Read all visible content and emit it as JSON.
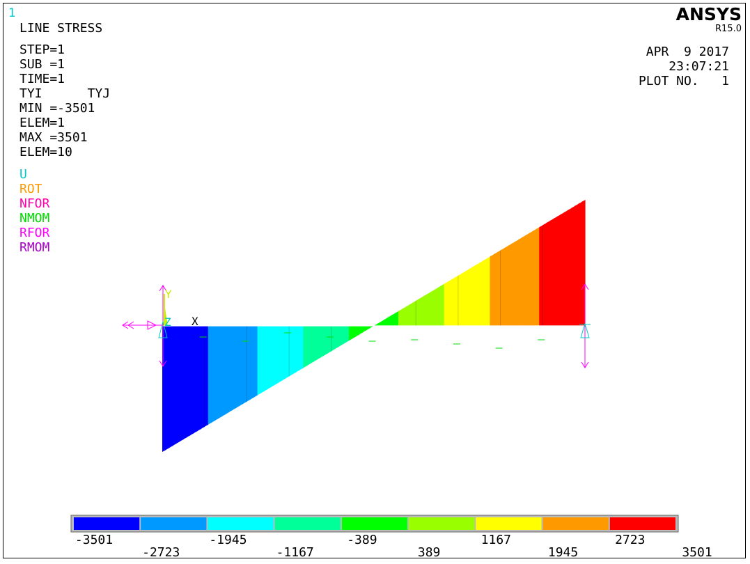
{
  "window_number": "1",
  "brand": {
    "name": "ANSYS",
    "release": "R15.0"
  },
  "plot_title": "LINE STRESS",
  "solution_info": [
    "STEP=1",
    "SUB =1",
    "TIME=1",
    "TYI      TYJ",
    "MIN =-3501",
    "ELEM=1",
    "MAX =3501",
    "ELEM=10"
  ],
  "symbol_legend": [
    {
      "label": "U",
      "color": "#00c8c8"
    },
    {
      "label": "ROT",
      "color": "#ff9900"
    },
    {
      "label": "NFOR",
      "color": "#ff00aa"
    },
    {
      "label": "NMOM",
      "color": "#00dd00"
    },
    {
      "label": "RFOR",
      "color": "#ff00ff"
    },
    {
      "label": "RMOM",
      "color": "#aa00cc"
    }
  ],
  "date_block": {
    "date": "APR  9 2017",
    "time": "23:07:21",
    "plot_no": "PLOT NO.   1"
  },
  "triad": {
    "y_label": "Y",
    "z_label": "Z",
    "x_label": "X"
  },
  "contour_colors": [
    "#0000ff",
    "#0099ff",
    "#00ffff",
    "#00ff99",
    "#00ff00",
    "#99ff00",
    "#ffff00",
    "#ff9900",
    "#ff0000"
  ],
  "colorbar": {
    "upper_labels": [
      "-3501",
      "-1945",
      "-389",
      "1167",
      "2723"
    ],
    "lower_labels": [
      "-2723",
      "-1167",
      "389",
      "1945",
      "3501"
    ]
  },
  "chart_data": {
    "type": "bar",
    "title": "LINE STRESS",
    "element_count": 10,
    "min": -3501,
    "max": 3501,
    "series": [
      {
        "name": "TYI",
        "values": [
          -3501,
          -2723,
          -1945,
          -1167,
          -389,
          389,
          1167,
          1945,
          2723,
          3501
        ]
      }
    ]
  }
}
